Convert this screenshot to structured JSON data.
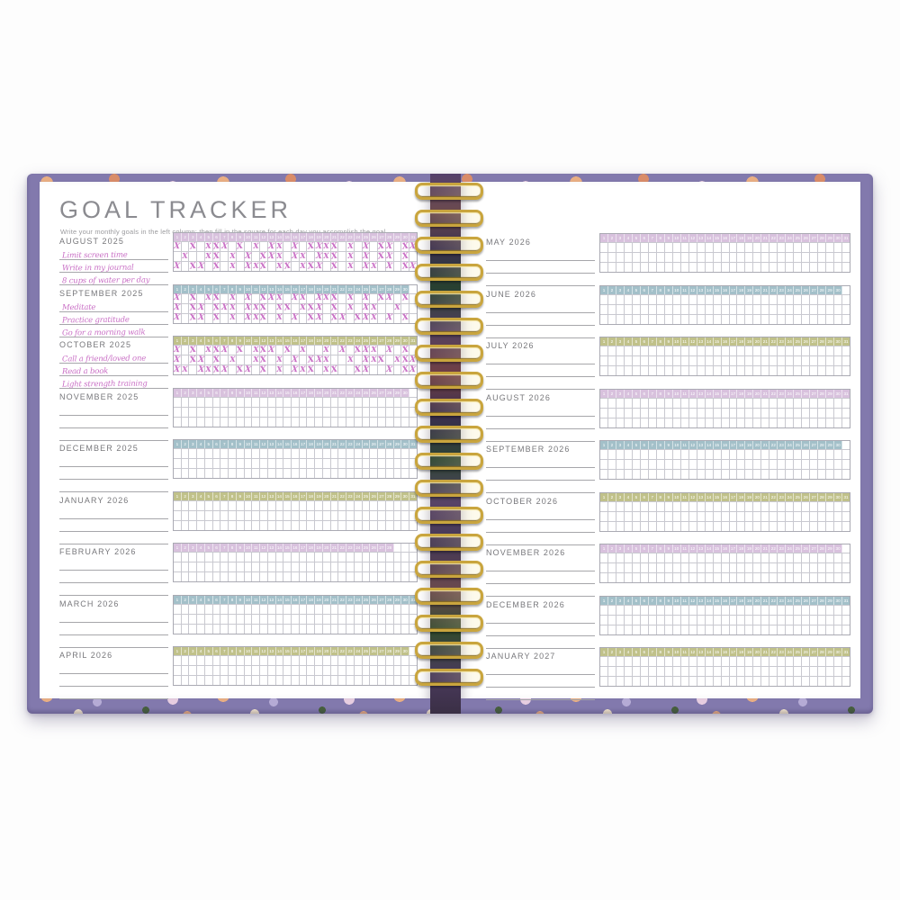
{
  "page_title": "GOAL TRACKER",
  "subtitle": "Write your monthly goals in the left column; then fill in the square for each day you accomplish the goal.",
  "colors": {
    "lilac": "#d8c1dd",
    "teal": "#a3c0c9",
    "olive": "#c0c18a",
    "mark": "#c96fc5",
    "cover": "#8279ad",
    "gold": "#c9a53e"
  },
  "left_page": {
    "months": [
      {
        "label": "AUGUST 2025",
        "days": 31,
        "color": "lilac",
        "goals": [
          "Limit screen time",
          "Write in my journal",
          "8 cups of water per day"
        ],
        "marks": [
          [
            1,
            3,
            5,
            6,
            7,
            9,
            11,
            13,
            14,
            16,
            18,
            19,
            20,
            21,
            23,
            25,
            27,
            28,
            30,
            31
          ],
          [
            2,
            5,
            6,
            8,
            10,
            12,
            13,
            14,
            16,
            17,
            19,
            20,
            21,
            23,
            25,
            27,
            28,
            30
          ],
          [
            1,
            3,
            4,
            6,
            8,
            10,
            11,
            12,
            14,
            15,
            17,
            18,
            19,
            21,
            23,
            25,
            26,
            28,
            30,
            31
          ]
        ]
      },
      {
        "label": "SEPTEMBER 2025",
        "days": 30,
        "color": "teal",
        "goals": [
          "Meditate",
          "Practice gratitude",
          "Go for a morning walk"
        ],
        "marks": [
          [
            1,
            3,
            5,
            6,
            8,
            10,
            12,
            13,
            14,
            16,
            17,
            19,
            20,
            21,
            23,
            25,
            27,
            28,
            30
          ],
          [
            1,
            3,
            4,
            6,
            7,
            8,
            10,
            11,
            12,
            14,
            15,
            17,
            18,
            19,
            21,
            23,
            25,
            26,
            29
          ],
          [
            1,
            3,
            4,
            6,
            8,
            10,
            11,
            12,
            14,
            16,
            18,
            19,
            21,
            22,
            24,
            25,
            26,
            28,
            30
          ]
        ]
      },
      {
        "label": "OCTOBER 2025",
        "days": 31,
        "color": "olive",
        "goals": [
          "Call a friend/loved one",
          "Read a book",
          "Light strength training"
        ],
        "marks": [
          [
            1,
            3,
            5,
            6,
            7,
            9,
            11,
            12,
            13,
            15,
            17,
            20,
            22,
            24,
            25,
            26,
            28,
            30
          ],
          [
            1,
            3,
            4,
            6,
            8,
            11,
            12,
            14,
            16,
            18,
            19,
            20,
            23,
            25,
            26,
            27,
            29,
            30,
            31
          ],
          [
            1,
            2,
            4,
            5,
            6,
            7,
            9,
            10,
            12,
            14,
            16,
            17,
            18,
            20,
            21,
            24,
            25,
            28,
            30,
            31
          ]
        ]
      },
      {
        "label": "NOVEMBER 2025",
        "days": 30,
        "color": "lilac",
        "goals": [
          "",
          "",
          ""
        ],
        "marks": [
          [],
          [],
          []
        ]
      },
      {
        "label": "DECEMBER 2025",
        "days": 31,
        "color": "teal",
        "goals": [
          "",
          "",
          ""
        ],
        "marks": [
          [],
          [],
          []
        ]
      },
      {
        "label": "JANUARY 2026",
        "days": 31,
        "color": "olive",
        "goals": [
          "",
          "",
          ""
        ],
        "marks": [
          [],
          [],
          []
        ]
      },
      {
        "label": "FEBRUARY 2026",
        "days": 28,
        "color": "lilac",
        "goals": [
          "",
          "",
          ""
        ],
        "marks": [
          [],
          [],
          []
        ]
      },
      {
        "label": "MARCH 2026",
        "days": 31,
        "color": "teal",
        "goals": [
          "",
          "",
          ""
        ],
        "marks": [
          [],
          [],
          []
        ]
      },
      {
        "label": "APRIL 2026",
        "days": 30,
        "color": "olive",
        "goals": [
          "",
          "",
          ""
        ],
        "marks": [
          [],
          [],
          []
        ]
      }
    ]
  },
  "right_page": {
    "months": [
      {
        "label": "MAY 2026",
        "days": 31,
        "color": "lilac",
        "goals": [
          "",
          "",
          ""
        ],
        "marks": [
          [],
          [],
          []
        ]
      },
      {
        "label": "JUNE 2026",
        "days": 30,
        "color": "teal",
        "goals": [
          "",
          "",
          ""
        ],
        "marks": [
          [],
          [],
          []
        ]
      },
      {
        "label": "JULY 2026",
        "days": 31,
        "color": "olive",
        "goals": [
          "",
          "",
          ""
        ],
        "marks": [
          [],
          [],
          []
        ]
      },
      {
        "label": "AUGUST 2026",
        "days": 31,
        "color": "lilac",
        "goals": [
          "",
          "",
          ""
        ],
        "marks": [
          [],
          [],
          []
        ]
      },
      {
        "label": "SEPTEMBER 2026",
        "days": 30,
        "color": "teal",
        "goals": [
          "",
          "",
          ""
        ],
        "marks": [
          [],
          [],
          []
        ]
      },
      {
        "label": "OCTOBER 2026",
        "days": 31,
        "color": "olive",
        "goals": [
          "",
          "",
          ""
        ],
        "marks": [
          [],
          [],
          []
        ]
      },
      {
        "label": "NOVEMBER 2026",
        "days": 30,
        "color": "lilac",
        "goals": [
          "",
          "",
          ""
        ],
        "marks": [
          [],
          [],
          []
        ]
      },
      {
        "label": "DECEMBER 2026",
        "days": 31,
        "color": "teal",
        "goals": [
          "",
          "",
          ""
        ],
        "marks": [
          [],
          [],
          []
        ]
      },
      {
        "label": "JANUARY 2027",
        "days": 31,
        "color": "olive",
        "goals": [
          "",
          "",
          ""
        ],
        "marks": [
          [],
          [],
          []
        ]
      }
    ]
  }
}
